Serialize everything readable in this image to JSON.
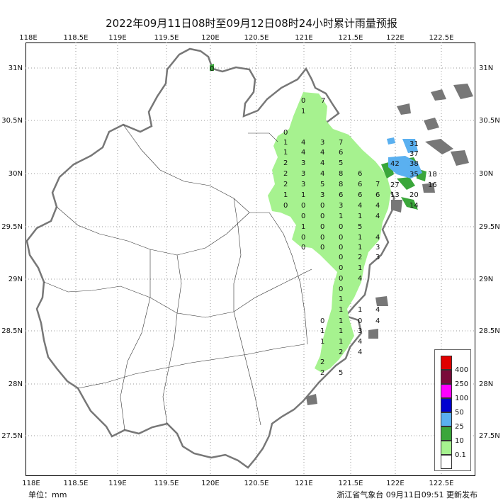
{
  "title": "2022年09月11日08时至09月12日08时24小时累计雨量预报",
  "top_ticks": [
    "118E",
    "118.5E",
    "119E",
    "119.5E",
    "120E",
    "120.5E",
    "121E",
    "121.5E",
    "122E",
    "122.5E"
  ],
  "bottom_ticks": [
    "118E",
    "118.5E",
    "119E",
    "119.5E",
    "120E",
    "120.5E",
    "121E",
    "121.5E",
    "122E",
    "122.5E"
  ],
  "left_ticks": [
    "31N",
    "30.5N",
    "30N",
    "29.5N",
    "29N",
    "28.5N",
    "28N",
    "27.5N"
  ],
  "right_ticks": [
    "31N",
    "30.5N",
    "30N",
    "29.5N",
    "29N",
    "28.5N",
    "28N",
    "27.5N"
  ],
  "unit_label": "单位：mm",
  "issuer_label": "浙江省气象台 09月11日09:51 更新发布",
  "legend": {
    "items": [
      {
        "label": "400",
        "color": "#e00000"
      },
      {
        "label": "250",
        "color": "#7a0a3a"
      },
      {
        "label": "100",
        "color": "#ff00ff"
      },
      {
        "label": "50",
        "color": "#0000d0"
      },
      {
        "label": "25",
        "color": "#5ab0f0"
      },
      {
        "label": "10",
        "color": "#3aa63a"
      },
      {
        "label": "0.1",
        "color": "#a6f28f"
      },
      {
        "label": "",
        "color": "#ffffff"
      }
    ]
  },
  "station_values": [
    {
      "t": "0"
    },
    {
      "t": "0"
    },
    {
      "t": "7"
    },
    {
      "t": "1"
    },
    {
      "t": "0"
    },
    {
      "t": "1"
    },
    {
      "t": "4"
    },
    {
      "t": "3"
    },
    {
      "t": "7"
    },
    {
      "t": "1"
    },
    {
      "t": "4"
    },
    {
      "t": "4"
    },
    {
      "t": "6"
    },
    {
      "t": "2"
    },
    {
      "t": "3"
    },
    {
      "t": "4"
    },
    {
      "t": "5"
    },
    {
      "t": "2"
    },
    {
      "t": "3"
    },
    {
      "t": "4"
    },
    {
      "t": "8"
    },
    {
      "t": "6"
    },
    {
      "t": "2"
    },
    {
      "t": "3"
    },
    {
      "t": "5"
    },
    {
      "t": "8"
    },
    {
      "t": "6"
    },
    {
      "t": "7"
    },
    {
      "t": "1"
    },
    {
      "t": "1"
    },
    {
      "t": "3"
    },
    {
      "t": "6"
    },
    {
      "t": "6"
    },
    {
      "t": "6"
    },
    {
      "t": "0"
    },
    {
      "t": "0"
    },
    {
      "t": "0"
    },
    {
      "t": "3"
    },
    {
      "t": "4"
    },
    {
      "t": "4"
    },
    {
      "t": "0"
    },
    {
      "t": "0"
    },
    {
      "t": "1"
    },
    {
      "t": "1"
    },
    {
      "t": "4"
    },
    {
      "t": "1"
    },
    {
      "t": "0"
    },
    {
      "t": "0"
    },
    {
      "t": "5"
    },
    {
      "t": "0"
    },
    {
      "t": "0"
    },
    {
      "t": "0"
    },
    {
      "t": "1"
    },
    {
      "t": "4"
    },
    {
      "t": "0"
    },
    {
      "t": "0"
    },
    {
      "t": "0"
    },
    {
      "t": "1"
    },
    {
      "t": "3"
    },
    {
      "t": "0"
    },
    {
      "t": "2"
    },
    {
      "t": "3"
    },
    {
      "t": "0"
    },
    {
      "t": "1"
    },
    {
      "t": "0"
    },
    {
      "t": "4"
    },
    {
      "t": "0"
    },
    {
      "t": "1"
    },
    {
      "t": "1"
    },
    {
      "t": "1"
    },
    {
      "t": "4"
    },
    {
      "t": "0"
    },
    {
      "t": "1"
    },
    {
      "t": "0"
    },
    {
      "t": "4"
    },
    {
      "t": "1"
    },
    {
      "t": "1"
    },
    {
      "t": "3"
    },
    {
      "t": "1"
    },
    {
      "t": "1"
    },
    {
      "t": "4"
    },
    {
      "t": "2"
    },
    {
      "t": "4"
    },
    {
      "t": "2"
    },
    {
      "t": "2"
    },
    {
      "t": "5"
    },
    {
      "t": "31"
    },
    {
      "t": "37"
    },
    {
      "t": "42"
    },
    {
      "t": "38"
    },
    {
      "t": "35"
    },
    {
      "t": "18"
    },
    {
      "t": "16"
    },
    {
      "t": "27"
    },
    {
      "t": "13"
    },
    {
      "t": "20"
    },
    {
      "t": "14"
    }
  ]
}
